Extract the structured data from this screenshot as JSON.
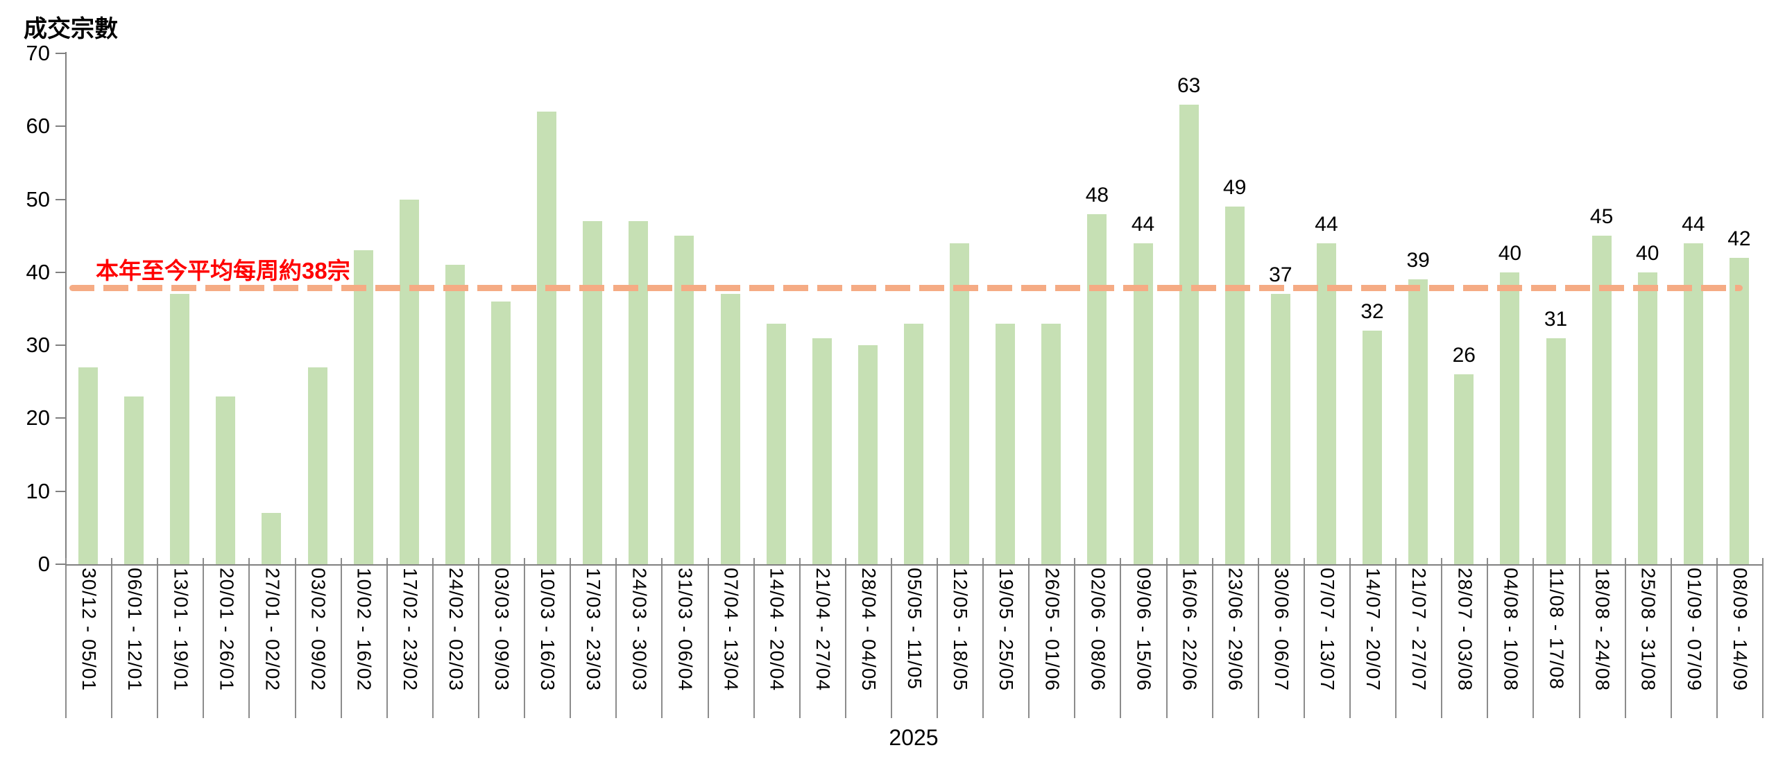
{
  "chart_data": {
    "type": "bar",
    "title": "成交宗數",
    "x_axis_year_label": "2025",
    "ylim": [
      0,
      70
    ],
    "y_ticks": [
      0,
      10,
      20,
      30,
      40,
      50,
      60,
      70
    ],
    "grid": false,
    "legend": false,
    "bar_color": "#c6e0b4",
    "axis_color": "#808080",
    "average_line": {
      "value": 38,
      "label": "本年至今平均每周約38宗",
      "line_color": "#f5ab84",
      "label_color": "#ff0000"
    },
    "data_labels_shown_from_index": 22,
    "categories": [
      "30/12 - 05/01",
      "06/01 - 12/01",
      "13/01 - 19/01",
      "20/01 - 26/01",
      "27/01 - 02/02",
      "03/02 - 09/02",
      "10/02 - 16/02",
      "17/02 - 23/02",
      "24/02 - 02/03",
      "03/03 - 09/03",
      "10/03 - 16/03",
      "17/03 - 23/03",
      "24/03 - 30/03",
      "31/03 - 06/04",
      "07/04 - 13/04",
      "14/04 - 20/04",
      "21/04 - 27/04",
      "28/04 - 04/05",
      "05/05 - 11/05",
      "12/05 - 18/05",
      "19/05 - 25/05",
      "26/05 - 01/06",
      "02/06 - 08/06",
      "09/06 - 15/06",
      "16/06 - 22/06",
      "23/06 - 29/06",
      "30/06 - 06/07",
      "07/07 - 13/07",
      "14/07 - 20/07",
      "21/07 - 27/07",
      "28/07 - 03/08",
      "04/08 - 10/08",
      "11/08 - 17/08",
      "18/08 - 24/08",
      "25/08 - 31/08",
      "01/09 - 07/09",
      "08/09 - 14/09"
    ],
    "values": [
      27,
      23,
      37,
      23,
      7,
      27,
      43,
      50,
      41,
      36,
      62,
      47,
      47,
      45,
      37,
      33,
      31,
      30,
      33,
      44,
      33,
      33,
      48,
      44,
      63,
      49,
      37,
      44,
      32,
      39,
      26,
      40,
      31,
      45,
      40,
      44,
      42
    ]
  }
}
